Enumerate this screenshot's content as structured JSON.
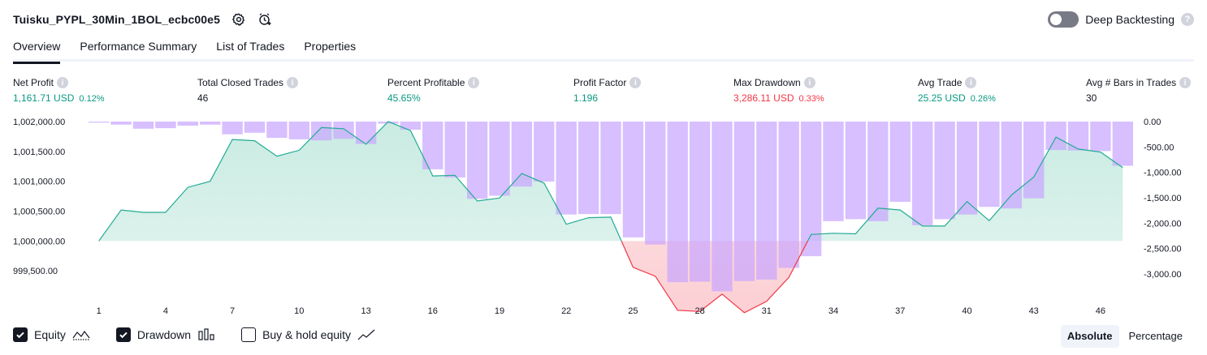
{
  "header": {
    "title": "Tuisku_PYPL_30Min_1BOL_ecbc00e5",
    "deep_backtesting_label": "Deep Backtesting",
    "deep_backtesting_enabled": false,
    "help_glyph": "?"
  },
  "tabs": [
    {
      "label": "Overview",
      "active": true
    },
    {
      "label": "Performance Summary",
      "active": false
    },
    {
      "label": "List of Trades",
      "active": false
    },
    {
      "label": "Properties",
      "active": false
    }
  ],
  "metrics": {
    "info_glyph": "i",
    "net_profit": {
      "label": "Net Profit",
      "value": "1,161.71 USD",
      "pct": "0.12%"
    },
    "total_closed_trades": {
      "label": "Total Closed Trades",
      "value": "46"
    },
    "percent_profitable": {
      "label": "Percent Profitable",
      "value": "45.65%"
    },
    "profit_factor": {
      "label": "Profit Factor",
      "value": "1.196"
    },
    "max_drawdown": {
      "label": "Max Drawdown",
      "value": "3,286.11 USD",
      "pct": "0.33%"
    },
    "avg_trade": {
      "label": "Avg Trade",
      "value": "25.25 USD",
      "pct": "0.26%"
    },
    "avg_bars": {
      "label": "Avg # Bars in Trades",
      "value": "30"
    }
  },
  "colors": {
    "positive": "#089981",
    "negative": "#f23645",
    "equity_line_up": "#22ab94",
    "equity_line_down": "#f23645",
    "equity_fill_up": "#c9ebe2",
    "equity_fill_down": "#fccfd3",
    "drawdown_bar": "#c9a6ff"
  },
  "chart_data": {
    "type": "area",
    "baseline": 1000000,
    "x": [
      1,
      2,
      3,
      4,
      5,
      6,
      7,
      8,
      9,
      10,
      11,
      12,
      13,
      14,
      15,
      16,
      17,
      18,
      19,
      20,
      21,
      22,
      23,
      24,
      25,
      26,
      27,
      28,
      29,
      30,
      31,
      32,
      33,
      34,
      35,
      36,
      37,
      38,
      39,
      40,
      41,
      42,
      43,
      44,
      45,
      46,
      47
    ],
    "x_ticks": [
      "1",
      "4",
      "7",
      "10",
      "13",
      "16",
      "19",
      "22",
      "25",
      "28",
      "31",
      "34",
      "37",
      "40",
      "43",
      "46"
    ],
    "left_axis": {
      "ticks": [
        "1,002,000.00",
        "1,001,500.00",
        "1,001,000.00",
        "1,000,500.00",
        "1,000,000.00",
        "999,500.00"
      ],
      "range": [
        999150,
        1002000
      ]
    },
    "right_axis": {
      "ticks": [
        "0.00",
        "-500.00",
        "-1,000.00",
        "-1,500.00",
        "-2,000.00",
        "-2,500.00",
        "-3,000.00"
      ],
      "range": [
        -3350,
        0
      ]
    },
    "series": [
      {
        "name": "Equity",
        "axis": "left",
        "values": [
          1000000,
          1000520,
          1000480,
          1000480,
          1000900,
          1001000,
          1001700,
          1001680,
          1001420,
          1001520,
          1001900,
          1001880,
          1001620,
          1002000,
          1001850,
          1001090,
          1001100,
          1000670,
          1000720,
          1001130,
          1000970,
          1000280,
          1000390,
          1000400,
          999560,
          999410,
          998840,
          998820,
          999110,
          998800,
          998990,
          999390,
          1000110,
          1000130,
          1000120,
          1000550,
          1000520,
          1000250,
          1000250,
          1000660,
          1000340,
          1000770,
          1001070,
          1001740,
          1001540,
          1001490,
          1001230
        ]
      },
      {
        "name": "Drawdown",
        "axis": "right",
        "values": [
          -20,
          -60,
          -140,
          -130,
          -80,
          -60,
          -250,
          -220,
          -320,
          -350,
          -370,
          -340,
          -440,
          -40,
          -160,
          -940,
          -1100,
          -1520,
          -1460,
          -1280,
          -1180,
          -1830,
          -1820,
          -1820,
          -2280,
          -2420,
          -3160,
          -3150,
          -3340,
          -3140,
          -3110,
          -2880,
          -2650,
          -1960,
          -1920,
          -1960,
          -1580,
          -2040,
          -1920,
          -1830,
          -1680,
          -1710,
          -1510,
          -560,
          -570,
          -580,
          -870
        ]
      }
    ],
    "legend": [
      {
        "label": "Equity",
        "checked": true
      },
      {
        "label": "Drawdown",
        "checked": true
      },
      {
        "label": "Buy & hold equity",
        "checked": false
      }
    ]
  },
  "modes": [
    {
      "label": "Absolute",
      "active": true
    },
    {
      "label": "Percentage",
      "active": false
    }
  ]
}
